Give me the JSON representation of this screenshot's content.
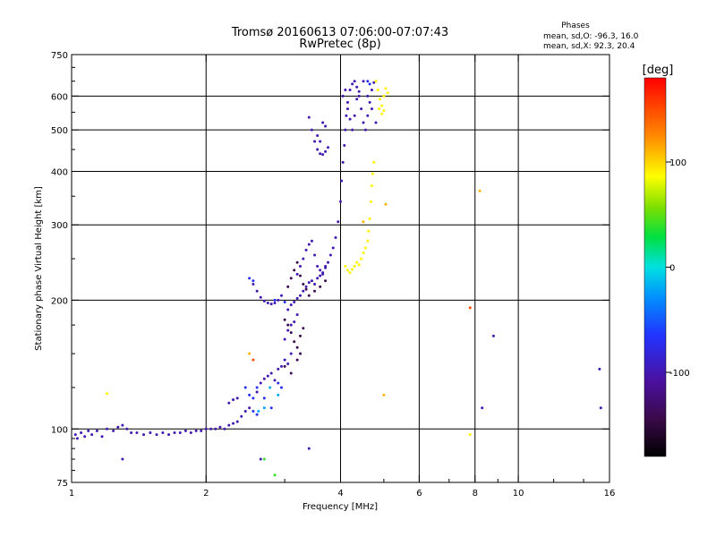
{
  "chart_data": {
    "type": "scatter",
    "title": "Tromsø 20160613 07:06:00-07:07:43",
    "subtitle": "RwPretec (8p)",
    "stats": {
      "heading": "Phases",
      "line_o": "mean, sd,O: -96.3, 16.0",
      "line_x": "mean, sd,X:  92.3, 20.4"
    },
    "xlabel": "Frequency [MHz]",
    "ylabel": "Stationary phase Virtual Height [km]",
    "x_scale": "log",
    "y_scale": "log",
    "xlim": [
      1,
      16
    ],
    "ylim": [
      75,
      750
    ],
    "x_ticks": [
      1,
      2,
      4,
      6,
      8,
      10,
      16
    ],
    "x_tick_labels": [
      "1",
      "2",
      "4",
      "6",
      "8",
      "10",
      "16"
    ],
    "y_ticks": [
      75,
      100,
      200,
      300,
      400,
      500,
      600,
      750
    ],
    "y_tick_labels": [
      "75",
      "100",
      "200",
      "300",
      "400",
      "500",
      "600",
      "750"
    ],
    "grid_x": [
      2,
      4,
      6,
      8,
      10
    ],
    "grid_y": [
      100,
      200,
      300,
      400,
      500,
      600
    ],
    "colorbar": {
      "label": "[deg]",
      "range": [
        -180,
        180
      ],
      "ticks": [
        100,
        0,
        -100
      ],
      "tick_labels": [
        "100",
        "0",
        "-100"
      ]
    },
    "series": [
      {
        "phase": -100,
        "points": [
          [
            1.02,
            97
          ],
          [
            1.03,
            95
          ],
          [
            1.05,
            98
          ],
          [
            1.07,
            96
          ],
          [
            1.09,
            99
          ],
          [
            1.11,
            97
          ],
          [
            1.14,
            99
          ],
          [
            1.17,
            96
          ],
          [
            1.2,
            100
          ],
          [
            1.24,
            99
          ],
          [
            1.27,
            101
          ],
          [
            1.3,
            102
          ],
          [
            1.33,
            100
          ],
          [
            1.36,
            98
          ],
          [
            1.4,
            98
          ],
          [
            1.45,
            97
          ],
          [
            1.5,
            98
          ],
          [
            1.55,
            97
          ],
          [
            1.6,
            98
          ],
          [
            1.65,
            97
          ],
          [
            1.7,
            98
          ],
          [
            1.75,
            98
          ],
          [
            1.8,
            99
          ],
          [
            1.85,
            98
          ],
          [
            1.9,
            99
          ],
          [
            1.95,
            99
          ],
          [
            2.0,
            100
          ],
          [
            2.05,
            100
          ],
          [
            2.1,
            100
          ],
          [
            2.15,
            101
          ],
          [
            2.2,
            100
          ],
          [
            2.25,
            102
          ],
          [
            2.3,
            103
          ],
          [
            2.35,
            104
          ],
          [
            2.4,
            107
          ],
          [
            2.45,
            110
          ],
          [
            2.5,
            112
          ],
          [
            2.25,
            115
          ],
          [
            2.3,
            117
          ],
          [
            2.35,
            118
          ],
          [
            2.55,
            218
          ],
          [
            2.6,
            210
          ],
          [
            2.65,
            203
          ],
          [
            2.7,
            199
          ],
          [
            2.75,
            197
          ],
          [
            2.8,
            196
          ],
          [
            2.85,
            197
          ],
          [
            2.9,
            200
          ],
          [
            2.95,
            205
          ],
          [
            2.6,
            122
          ],
          [
            2.65,
            128
          ],
          [
            2.7,
            131
          ],
          [
            2.75,
            133
          ],
          [
            2.8,
            135
          ],
          [
            2.85,
            130
          ],
          [
            2.9,
            138
          ],
          [
            2.95,
            140
          ],
          [
            3.0,
            145
          ],
          [
            3.05,
            142
          ],
          [
            3.1,
            150
          ],
          [
            3.0,
            162
          ],
          [
            3.05,
            170
          ],
          [
            3.1,
            175
          ],
          [
            3.15,
            178
          ],
          [
            3.2,
            185
          ],
          [
            3.05,
            190
          ],
          [
            3.1,
            195
          ],
          [
            3.15,
            198
          ],
          [
            3.2,
            202
          ],
          [
            3.25,
            205
          ],
          [
            3.3,
            210
          ],
          [
            3.35,
            215
          ],
          [
            3.4,
            220
          ],
          [
            3.45,
            222
          ],
          [
            3.5,
            218
          ],
          [
            3.55,
            225
          ],
          [
            3.6,
            228
          ],
          [
            3.65,
            232
          ],
          [
            3.7,
            238
          ],
          [
            3.75,
            245
          ],
          [
            3.2,
            230
          ],
          [
            3.25,
            240
          ],
          [
            3.3,
            250
          ],
          [
            3.35,
            262
          ],
          [
            3.4,
            270
          ],
          [
            3.45,
            275
          ],
          [
            3.5,
            255
          ],
          [
            3.55,
            240
          ],
          [
            3.6,
            235
          ],
          [
            3.65,
            230
          ],
          [
            3.7,
            240
          ],
          [
            3.8,
            255
          ],
          [
            3.85,
            265
          ],
          [
            3.9,
            280
          ],
          [
            3.95,
            305
          ],
          [
            4.0,
            340
          ],
          [
            4.02,
            380
          ],
          [
            4.05,
            420
          ],
          [
            4.08,
            460
          ],
          [
            4.1,
            500
          ],
          [
            4.12,
            540
          ],
          [
            4.15,
            580
          ],
          [
            4.2,
            620
          ],
          [
            4.25,
            640
          ],
          [
            4.3,
            650
          ],
          [
            4.35,
            630
          ],
          [
            4.4,
            600
          ],
          [
            4.45,
            560
          ],
          [
            4.5,
            520
          ],
          [
            4.55,
            500
          ],
          [
            4.6,
            540
          ],
          [
            4.65,
            580
          ],
          [
            4.7,
            620
          ],
          [
            4.75,
            645
          ],
          [
            4.05,
            600
          ],
          [
            4.1,
            620
          ],
          [
            4.15,
            560
          ],
          [
            4.2,
            530
          ],
          [
            4.25,
            500
          ],
          [
            4.3,
            540
          ],
          [
            4.35,
            590
          ],
          [
            4.4,
            615
          ],
          [
            4.5,
            650
          ],
          [
            4.6,
            600
          ],
          [
            4.7,
            560
          ],
          [
            4.8,
            520
          ],
          [
            3.4,
            535
          ],
          [
            3.45,
            500
          ],
          [
            3.5,
            470
          ],
          [
            3.55,
            450
          ],
          [
            3.6,
            440
          ],
          [
            3.65,
            438
          ],
          [
            3.7,
            445
          ],
          [
            3.75,
            455
          ],
          [
            3.55,
            485
          ],
          [
            3.6,
            470
          ],
          [
            3.65,
            520
          ],
          [
            3.7,
            510
          ],
          [
            8.3,
            112
          ],
          [
            8.8,
            165
          ],
          [
            15.2,
            138
          ],
          [
            15.3,
            112
          ],
          [
            3.4,
            90
          ],
          [
            2.65,
            85
          ],
          [
            1.3,
            85
          ]
        ]
      },
      {
        "phase": -140,
        "points": [
          [
            3.05,
            215
          ],
          [
            3.1,
            225
          ],
          [
            3.15,
            235
          ],
          [
            3.2,
            245
          ],
          [
            3.25,
            228
          ],
          [
            3.3,
            218
          ],
          [
            3.35,
            212
          ],
          [
            3.0,
            180
          ],
          [
            3.05,
            175
          ],
          [
            3.1,
            168
          ],
          [
            3.15,
            160
          ],
          [
            3.2,
            155
          ],
          [
            3.25,
            150
          ],
          [
            3.0,
            140
          ],
          [
            3.1,
            135
          ],
          [
            3.2,
            145
          ],
          [
            3.25,
            165
          ],
          [
            3.3,
            172
          ],
          [
            3.4,
            205
          ],
          [
            3.5,
            210
          ],
          [
            3.6,
            215
          ],
          [
            3.7,
            222
          ]
        ]
      },
      {
        "phase": -70,
        "points": [
          [
            2.5,
            225
          ],
          [
            2.55,
            222
          ],
          [
            2.45,
            125
          ],
          [
            2.5,
            120
          ],
          [
            2.55,
            118
          ],
          [
            2.6,
            125
          ],
          [
            2.7,
            118
          ],
          [
            2.8,
            112
          ],
          [
            2.55,
            110
          ],
          [
            2.6,
            108
          ],
          [
            2.85,
            200
          ],
          [
            3.0,
            198
          ],
          [
            2.9,
            128
          ],
          [
            2.95,
            125
          ],
          [
            4.6,
            650
          ],
          [
            4.65,
            640
          ]
        ]
      },
      {
        "phase": -20,
        "points": [
          [
            2.62,
            110
          ],
          [
            2.7,
            112
          ],
          [
            2.78,
            125
          ],
          [
            2.9,
            120
          ]
        ]
      },
      {
        "phase": 40,
        "points": [
          [
            2.85,
            78
          ],
          [
            2.7,
            85
          ]
        ]
      },
      {
        "phase": 90,
        "points": [
          [
            4.1,
            240
          ],
          [
            4.15,
            235
          ],
          [
            4.2,
            232
          ],
          [
            4.25,
            236
          ],
          [
            4.3,
            240
          ],
          [
            4.35,
            245
          ],
          [
            4.4,
            242
          ],
          [
            4.45,
            250
          ],
          [
            4.5,
            258
          ],
          [
            4.55,
            265
          ],
          [
            4.6,
            275
          ],
          [
            4.62,
            290
          ],
          [
            4.65,
            310
          ],
          [
            4.68,
            340
          ],
          [
            4.7,
            370
          ],
          [
            4.72,
            395
          ],
          [
            4.75,
            420
          ],
          [
            4.8,
            650
          ],
          [
            4.85,
            620
          ],
          [
            4.9,
            590
          ],
          [
            4.95,
            570
          ],
          [
            5.0,
            600
          ],
          [
            5.05,
            625
          ],
          [
            5.1,
            610
          ],
          [
            4.88,
            560
          ],
          [
            4.95,
            545
          ],
          [
            5.0,
            555
          ],
          [
            1.2,
            121
          ],
          [
            7.8,
            97
          ]
        ]
      },
      {
        "phase": 110,
        "points": [
          [
            8.2,
            360
          ],
          [
            5.0,
            120
          ],
          [
            2.5,
            150
          ],
          [
            4.5,
            305
          ],
          [
            5.05,
            335
          ]
        ]
      },
      {
        "phase": 150,
        "points": [
          [
            7.8,
            192
          ],
          [
            2.55,
            145
          ]
        ]
      }
    ]
  }
}
